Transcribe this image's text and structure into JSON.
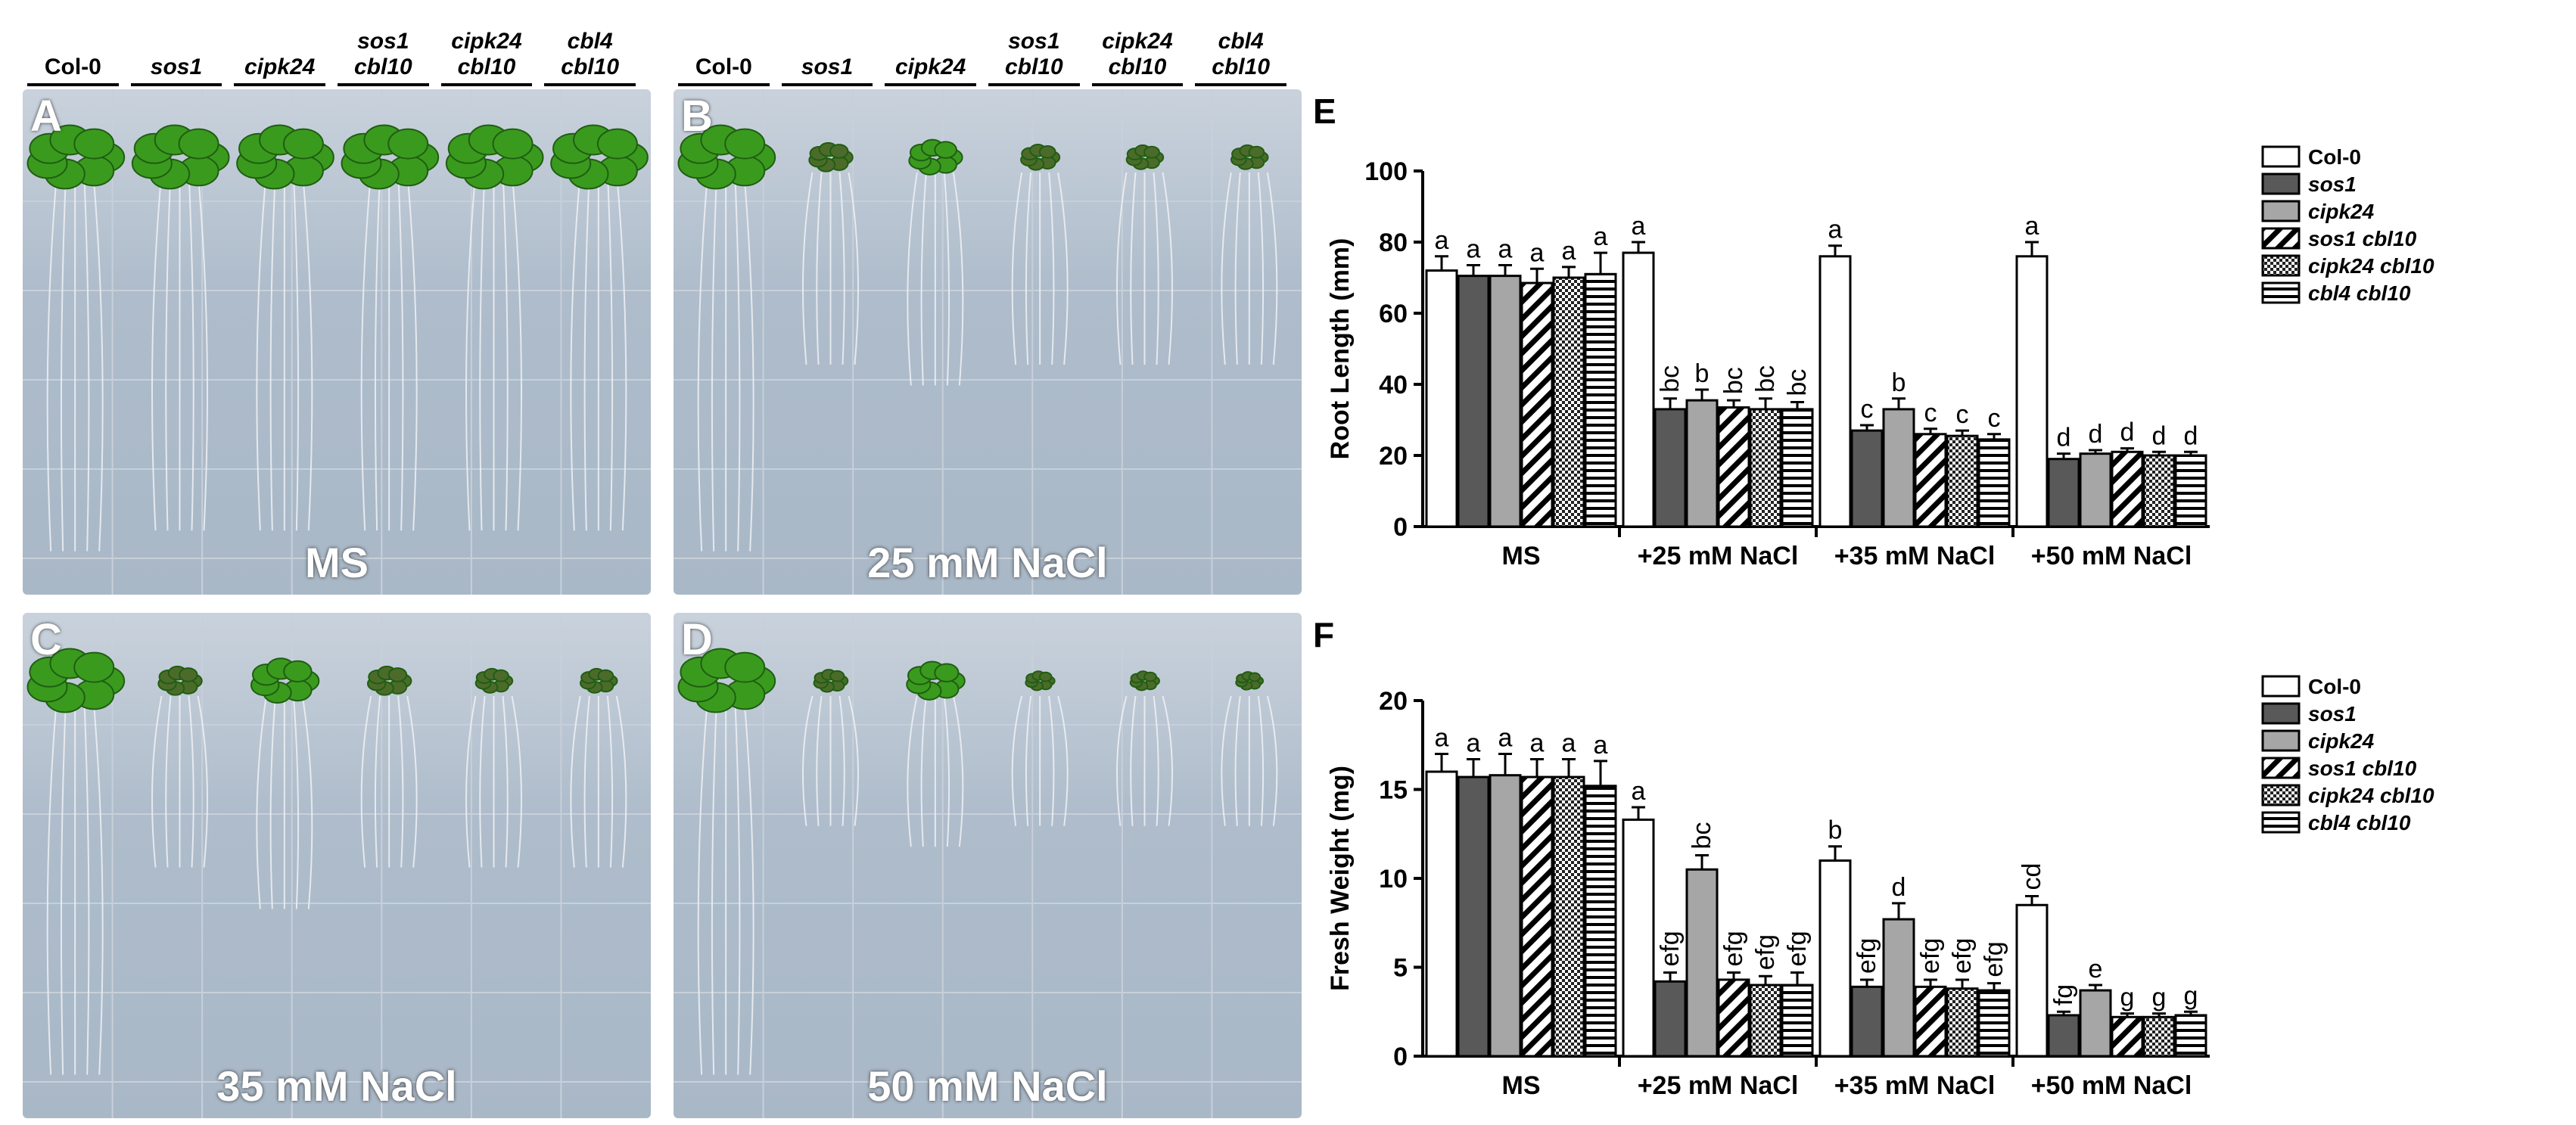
{
  "photo_panels": {
    "genotypes": [
      {
        "line1": "",
        "line2": "Col-0",
        "italic": false
      },
      {
        "line1": "",
        "line2": "sos1",
        "italic": true
      },
      {
        "line1": "",
        "line2": "cipk24",
        "italic": true
      },
      {
        "line1": "sos1",
        "line2": "cbl10",
        "italic": true
      },
      {
        "line1": "cipk24",
        "line2": "cbl10",
        "italic": true
      },
      {
        "line1": "cbl4",
        "line2": "cbl10",
        "italic": true
      }
    ],
    "panels": [
      {
        "letter": "A",
        "condition": "MS",
        "plant_sizes": [
          1.0,
          1.0,
          1.0,
          1.0,
          1.0,
          1.0
        ],
        "root_lengths": [
          0.95,
          0.9,
          0.9,
          0.9,
          0.9,
          0.9
        ],
        "leaf_color": "#3a9a1e"
      },
      {
        "letter": "B",
        "condition": "25 mM NaCl",
        "plant_sizes": [
          1.0,
          0.45,
          0.55,
          0.4,
          0.38,
          0.38
        ],
        "root_lengths": [
          0.95,
          0.5,
          0.55,
          0.5,
          0.5,
          0.5
        ],
        "leaf_color": "#3a9a1e"
      },
      {
        "letter": "C",
        "condition": "35 mM NaCl",
        "plant_sizes": [
          1.0,
          0.45,
          0.7,
          0.45,
          0.38,
          0.38
        ],
        "root_lengths": [
          0.95,
          0.45,
          0.55,
          0.45,
          0.45,
          0.45
        ],
        "leaf_color": "#3a9a1e"
      },
      {
        "letter": "D",
        "condition": "50 mM NaCl",
        "plant_sizes": [
          1.0,
          0.35,
          0.6,
          0.3,
          0.3,
          0.28
        ],
        "root_lengths": [
          0.95,
          0.35,
          0.4,
          0.35,
          0.35,
          0.35
        ],
        "leaf_color": "#3a9a1e"
      }
    ]
  },
  "chart_data": [
    {
      "panel_letter": "E",
      "type": "bar",
      "ylabel": "Root Length (mm)",
      "ylim": [
        0,
        100
      ],
      "yticks": [
        "0",
        "20",
        "40",
        "60",
        "80",
        "100"
      ],
      "categories": [
        "MS",
        "+25 mM NaCl",
        "+35 mM NaCl",
        "+50 mM NaCl"
      ],
      "series": [
        {
          "name": "Col-0",
          "italic": false,
          "pattern": "white",
          "values": [
            72,
            77,
            76,
            76
          ],
          "errors": [
            4,
            3,
            3,
            4
          ],
          "letters": [
            "a",
            "a",
            "a",
            "a"
          ]
        },
        {
          "name": "sos1",
          "italic": true,
          "pattern": "dark",
          "values": [
            70.5,
            33,
            27,
            19
          ],
          "errors": [
            3,
            3,
            1.5,
            1.5
          ],
          "letters": [
            "a",
            "bc",
            "c",
            "d"
          ]
        },
        {
          "name": "cipk24",
          "italic": true,
          "pattern": "gray",
          "values": [
            70.5,
            35.5,
            33,
            20.5
          ],
          "errors": [
            3,
            3,
            3,
            1
          ],
          "letters": [
            "a",
            "b",
            "b",
            "d"
          ]
        },
        {
          "name": "sos1 cbl10",
          "italic": true,
          "pattern": "diagonal",
          "values": [
            68.5,
            33.5,
            26,
            21
          ],
          "errors": [
            4,
            2,
            1.5,
            1
          ],
          "letters": [
            "a",
            "bc",
            "c",
            "d"
          ]
        },
        {
          "name": "cipk24 cbl10",
          "italic": true,
          "pattern": "checker",
          "values": [
            70,
            33,
            25.5,
            20
          ],
          "errors": [
            3,
            3,
            1.5,
            1
          ],
          "letters": [
            "a",
            "bc",
            "c",
            "d"
          ]
        },
        {
          "name": "cbl4 cbl10",
          "italic": true,
          "pattern": "horizontal",
          "values": [
            71,
            33,
            24.5,
            20
          ],
          "errors": [
            6,
            2,
            1.5,
            1
          ],
          "letters": [
            "a",
            "bc",
            "c",
            "d"
          ]
        }
      ]
    },
    {
      "panel_letter": "F",
      "type": "bar",
      "ylabel": "Fresh Weight (mg)",
      "ylim": [
        0,
        20
      ],
      "yticks": [
        "0",
        "5",
        "10",
        "15",
        "20"
      ],
      "categories": [
        "MS",
        "+25 mM NaCl",
        "+35 mM NaCl",
        "+50 mM NaCl"
      ],
      "series": [
        {
          "name": "Col-0",
          "italic": false,
          "pattern": "white",
          "values": [
            16,
            13.3,
            11,
            8.5
          ],
          "errors": [
            1,
            0.7,
            0.8,
            0.5
          ],
          "letters": [
            "a",
            "a",
            "b",
            "cd"
          ]
        },
        {
          "name": "sos1",
          "italic": true,
          "pattern": "dark",
          "values": [
            15.7,
            4.2,
            3.9,
            2.3
          ],
          "errors": [
            1,
            0.5,
            0.4,
            0.2
          ],
          "letters": [
            "a",
            "efg",
            "efg",
            "fg"
          ]
        },
        {
          "name": "cipk24",
          "italic": true,
          "pattern": "gray",
          "values": [
            15.8,
            10.5,
            7.7,
            3.7
          ],
          "errors": [
            1.2,
            0.8,
            0.9,
            0.3
          ],
          "letters": [
            "a",
            "bc",
            "d",
            "e"
          ]
        },
        {
          "name": "sos1 cbl10",
          "italic": true,
          "pattern": "diagonal",
          "values": [
            15.7,
            4.3,
            3.9,
            2.2
          ],
          "errors": [
            1,
            0.4,
            0.4,
            0.2
          ],
          "letters": [
            "a",
            "efg",
            "efg",
            "g"
          ]
        },
        {
          "name": "cipk24 cbl10",
          "italic": true,
          "pattern": "checker",
          "values": [
            15.7,
            4.0,
            3.8,
            2.2
          ],
          "errors": [
            1,
            0.5,
            0.5,
            0.2
          ],
          "letters": [
            "a",
            "efg",
            "efg",
            "g"
          ]
        },
        {
          "name": "cbl4 cbl10",
          "italic": true,
          "pattern": "horizontal",
          "values": [
            15.2,
            4.0,
            3.7,
            2.3
          ],
          "errors": [
            1.4,
            0.7,
            0.4,
            0.2
          ],
          "letters": [
            "a",
            "efg",
            "efg",
            "g"
          ]
        }
      ]
    }
  ]
}
